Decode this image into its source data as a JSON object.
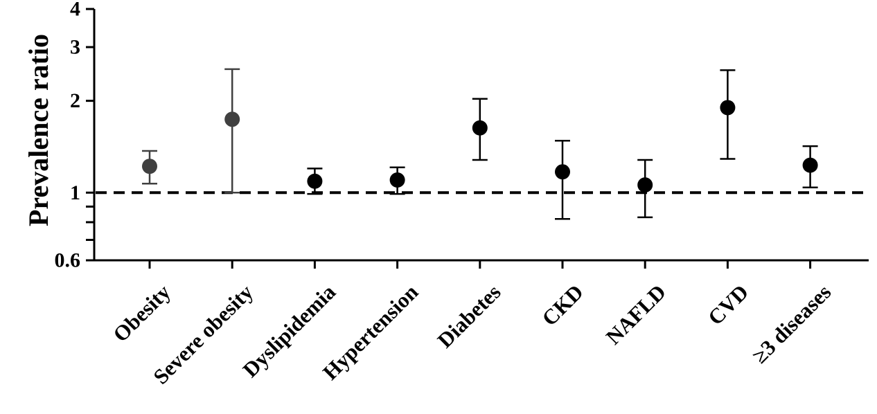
{
  "chart_data": {
    "type": "scatter",
    "title": "",
    "xlabel": "",
    "ylabel": "Prevalence ratio",
    "yscale": "log",
    "ylim": [
      0.6,
      4
    ],
    "major_ticks": [
      {
        "value": 0.6,
        "label": "0.6"
      },
      {
        "value": 1,
        "label": "1"
      },
      {
        "value": 2,
        "label": "2"
      },
      {
        "value": 3,
        "label": "3"
      },
      {
        "value": 4,
        "label": "4"
      }
    ],
    "minor_ticks": [
      0.7,
      0.8,
      0.9
    ],
    "reference_line": {
      "value": 1,
      "style": "dashed"
    },
    "grid": false,
    "categories": [
      "Obesity",
      "Severe obesity",
      "Dyslipidemia",
      "Hypertension",
      "Diabetes",
      "CKD",
      "NAFLD",
      "CVD",
      "≥3 diseases"
    ],
    "estimates": [
      1.22,
      1.74,
      1.09,
      1.1,
      1.63,
      1.17,
      1.06,
      1.9,
      1.23
    ],
    "ci_lower": [
      1.07,
      1.0,
      0.99,
      0.99,
      1.28,
      0.82,
      0.83,
      1.29,
      1.04
    ],
    "ci_upper": [
      1.37,
      2.54,
      1.2,
      1.21,
      2.03,
      1.48,
      1.28,
      2.52,
      1.42
    ],
    "colors": {
      "primary_marker": "#000000",
      "muted_marker": "#404040",
      "axis": "#000000"
    },
    "marker_color_groups": [
      "muted",
      "muted",
      "primary",
      "primary",
      "primary",
      "primary",
      "primary",
      "primary",
      "primary"
    ]
  }
}
